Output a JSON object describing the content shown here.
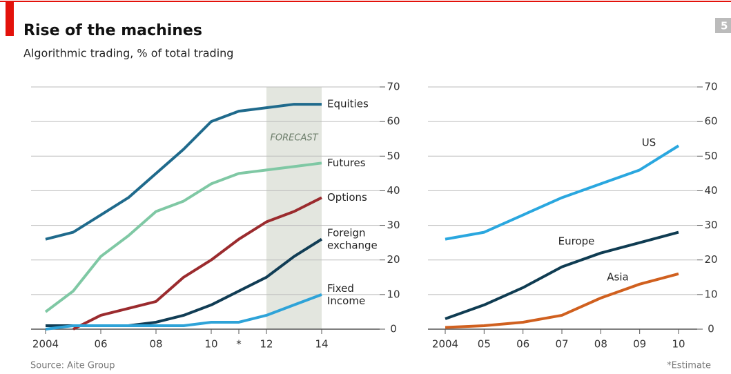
{
  "header": {
    "title": "Rise of the machines",
    "subtitle": "Algorithmic trading, % of total trading",
    "source": "Source: Aite Group",
    "note": "*Estimate",
    "page": "5"
  },
  "chart_data": [
    {
      "type": "line",
      "annotation": "FORECAST",
      "forecast_range": [
        2012,
        2014
      ],
      "x": [
        2004,
        2005,
        2006,
        2007,
        2008,
        2009,
        2010,
        2011,
        2012,
        2013,
        2014
      ],
      "xlim": [
        2004,
        2014
      ],
      "xticks": [
        2004,
        {
          "value": 2006,
          "label": "06"
        },
        {
          "value": 2008,
          "label": "08"
        },
        {
          "value": 2010,
          "label": "10"
        },
        {
          "value": 2011,
          "label": "*"
        },
        {
          "value": 2012,
          "label": "12"
        },
        {
          "value": 2014,
          "label": "14"
        }
      ],
      "ylim": [
        0,
        70
      ],
      "yticks": [
        0,
        10,
        20,
        30,
        40,
        50,
        60,
        70
      ],
      "grid": true,
      "series": [
        {
          "name": "Equities",
          "color": "#1f6a8c",
          "values": [
            26,
            28,
            33,
            38,
            45,
            52,
            60,
            63,
            64,
            65,
            65
          ]
        },
        {
          "name": "Futures",
          "color": "#7fc8a4",
          "values": [
            5,
            11,
            21,
            27,
            34,
            37,
            42,
            45,
            46,
            47,
            48
          ]
        },
        {
          "name": "Options",
          "color": "#9b2b2e",
          "values": [
            null,
            0,
            4,
            6,
            8,
            15,
            20,
            26,
            31,
            34,
            38
          ]
        },
        {
          "name": "Foreign exchange",
          "color": "#113d55",
          "values": [
            1,
            1,
            1,
            1,
            2,
            4,
            7,
            11,
            15,
            21,
            26
          ]
        },
        {
          "name": "Fixed Income",
          "color": "#2ea3d8",
          "values": [
            0,
            1,
            1,
            1,
            1,
            1,
            2,
            2,
            4,
            7,
            10
          ]
        }
      ]
    },
    {
      "type": "line",
      "x": [
        2004,
        2005,
        2006,
        2007,
        2008,
        2009,
        2010
      ],
      "xlim": [
        2004,
        2010
      ],
      "xticks": [
        2004,
        {
          "value": 2005,
          "label": "05"
        },
        {
          "value": 2006,
          "label": "06"
        },
        {
          "value": 2007,
          "label": "07"
        },
        {
          "value": 2008,
          "label": "08"
        },
        {
          "value": 2009,
          "label": "09"
        },
        {
          "value": 2010,
          "label": "10"
        }
      ],
      "ylim": [
        0,
        70
      ],
      "yticks": [
        0,
        10,
        20,
        30,
        40,
        50,
        60,
        70
      ],
      "grid": true,
      "series": [
        {
          "name": "US",
          "color": "#2aa7df",
          "values": [
            26,
            28,
            33,
            38,
            42,
            46,
            53
          ]
        },
        {
          "name": "Europe",
          "color": "#0f3c52",
          "values": [
            3,
            7,
            12,
            18,
            22,
            25,
            28
          ]
        },
        {
          "name": "Asia",
          "color": "#d0601f",
          "values": [
            0.5,
            1,
            2,
            4,
            9,
            13,
            16
          ]
        }
      ]
    }
  ]
}
